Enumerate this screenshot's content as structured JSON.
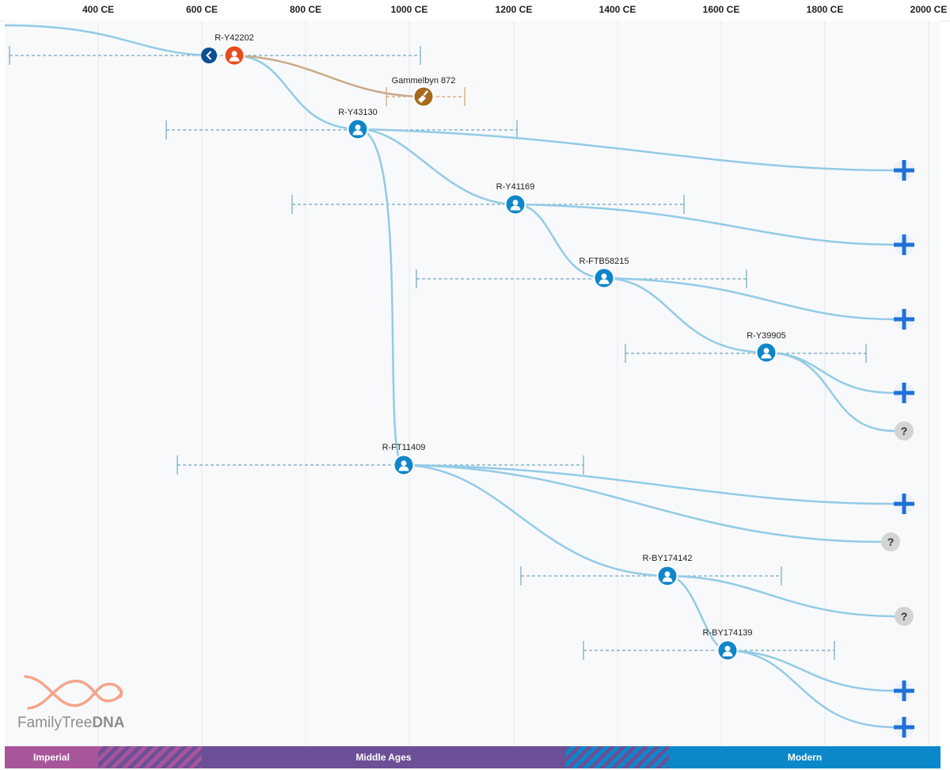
{
  "axis": {
    "ticks": [
      "400 CE",
      "600 CE",
      "800 CE",
      "1000 CE",
      "1200 CE",
      "1400 CE",
      "1600 CE",
      "1800 CE",
      "2000 CE"
    ]
  },
  "nodes": [
    {
      "id": "n0",
      "label": "R-Y42202",
      "kind": "root"
    },
    {
      "id": "n1",
      "label": "Gammelbyn 872",
      "kind": "ancient"
    },
    {
      "id": "n2",
      "label": "R-Y43130",
      "kind": "person"
    },
    {
      "id": "n3",
      "label": "R-Y41169",
      "kind": "person"
    },
    {
      "id": "n4",
      "label": "R-FTB58215",
      "kind": "person"
    },
    {
      "id": "n5",
      "label": "R-Y39905",
      "kind": "person"
    },
    {
      "id": "n6",
      "label": "R-FT11409",
      "kind": "person"
    },
    {
      "id": "n7",
      "label": "R-BY174142",
      "kind": "person"
    },
    {
      "id": "n8",
      "label": "R-BY174139",
      "kind": "person"
    }
  ],
  "end_markers": {
    "expand_glyph": "+",
    "unknown_glyph": "?"
  },
  "logo": {
    "text_light": "FamilyTree",
    "text_bold": "DNA"
  },
  "eras": [
    "Imperial",
    "Middle Ages",
    "Modern"
  ],
  "colors": {
    "branch": "#93cbe6",
    "ancient_branch": "#c9ab8a",
    "person_node": "#0f86c9",
    "root_node": "#ea4b1f",
    "ancient_node": "#a8691e",
    "expand": "#1e72d8",
    "unknown": "#d4d4d4",
    "era_imperial": "#a8559b",
    "era_middle": "#6b4f97",
    "era_modern": "#0b88c9",
    "logo_helix": "#f3a58c"
  },
  "icons": {
    "back": "chevron-left-icon",
    "person": "person-icon",
    "ancient": "shovel-icon",
    "expand": "plus-icon",
    "unknown": "question-icon"
  }
}
